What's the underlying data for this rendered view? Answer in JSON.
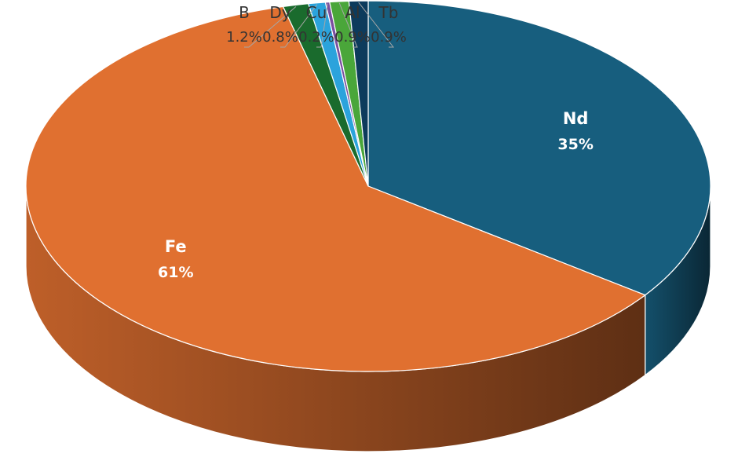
{
  "chart_data": {
    "type": "pie",
    "style": "3d",
    "title": "",
    "categories": [
      "Nd",
      "Fe",
      "B",
      "Dy",
      "Cu",
      "Al",
      "Tb"
    ],
    "values": [
      35,
      61,
      1.2,
      0.8,
      0.2,
      0.9,
      0.9
    ],
    "labels": [
      "35%",
      "61%",
      "1.2%",
      "0.8%",
      "0.2%",
      "0.9%",
      "0.9%"
    ],
    "colors": [
      "#175e7e",
      "#e07030",
      "#1a6b2d",
      "#2ba3dc",
      "#7a4fa0",
      "#4aa63a",
      "#0d3b5c"
    ],
    "label_placement": [
      "inside",
      "inside",
      "outside",
      "outside",
      "outside",
      "outside",
      "outside"
    ],
    "legend": "none"
  }
}
